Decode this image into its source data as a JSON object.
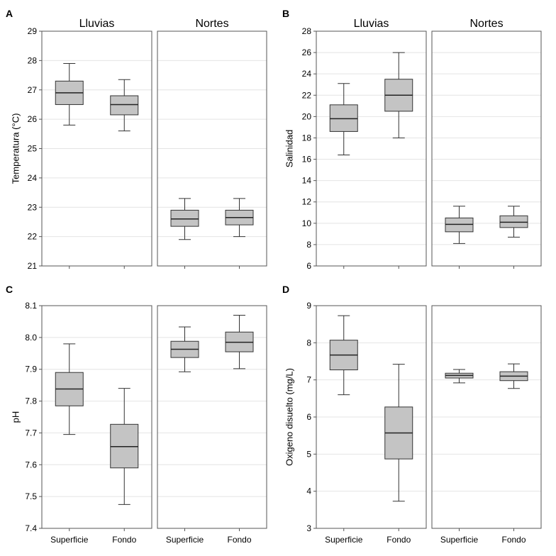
{
  "chart_data": [
    {
      "type": "boxplot",
      "panel_label": "A",
      "ylabel": "Temperatura (°C)",
      "ylim": [
        21,
        29
      ],
      "yticks": [
        21,
        22,
        23,
        24,
        25,
        26,
        27,
        28,
        29
      ],
      "ytick_labels": [
        "21",
        "22",
        "23",
        "24",
        "25",
        "26",
        "27",
        "28",
        "29"
      ],
      "groups": [
        {
          "name": "Lluvias",
          "boxes": [
            {
              "category": "Superficie",
              "min": 25.8,
              "q1": 26.5,
              "median": 26.9,
              "q3": 27.3,
              "max": 27.9
            },
            {
              "category": "Fondo",
              "min": 25.6,
              "q1": 26.15,
              "median": 26.5,
              "q3": 26.8,
              "max": 27.35
            }
          ]
        },
        {
          "name": "Nortes",
          "boxes": [
            {
              "category": "Superficie",
              "min": 21.9,
              "q1": 22.35,
              "median": 22.6,
              "q3": 22.9,
              "max": 23.3
            },
            {
              "category": "Fondo",
              "min": 22.0,
              "q1": 22.4,
              "median": 22.65,
              "q3": 22.9,
              "max": 23.3
            }
          ]
        }
      ],
      "show_group_titles": true,
      "show_x_labels": false
    },
    {
      "type": "boxplot",
      "panel_label": "B",
      "ylabel": "Salinidad",
      "ylim": [
        6,
        28
      ],
      "yticks": [
        6,
        8,
        10,
        12,
        14,
        16,
        18,
        20,
        22,
        24,
        26,
        28
      ],
      "ytick_labels": [
        "6",
        "8",
        "10",
        "12",
        "14",
        "16",
        "18",
        "20",
        "22",
        "24",
        "26",
        "28"
      ],
      "groups": [
        {
          "name": "Lluvias",
          "boxes": [
            {
              "category": "Superficie",
              "min": 16.4,
              "q1": 18.6,
              "median": 19.8,
              "q3": 21.1,
              "max": 23.1
            },
            {
              "category": "Fondo",
              "min": 18.0,
              "q1": 20.5,
              "median": 22.0,
              "q3": 23.5,
              "max": 26.0
            }
          ]
        },
        {
          "name": "Nortes",
          "boxes": [
            {
              "category": "Superficie",
              "min": 8.1,
              "q1": 9.2,
              "median": 9.9,
              "q3": 10.5,
              "max": 11.6
            },
            {
              "category": "Fondo",
              "min": 8.7,
              "q1": 9.6,
              "median": 10.1,
              "q3": 10.7,
              "max": 11.6
            }
          ]
        }
      ],
      "show_group_titles": true,
      "show_x_labels": false
    },
    {
      "type": "boxplot",
      "panel_label": "C",
      "ylabel": "pH",
      "ylim": [
        7.4,
        8.1
      ],
      "yticks": [
        7.4,
        7.5,
        7.6,
        7.7,
        7.8,
        7.9,
        8.0,
        8.1
      ],
      "ytick_labels": [
        "7.4",
        "7.5",
        "7.6",
        "7.7",
        "7.8",
        "7.9",
        "8.0",
        "8.1"
      ],
      "groups": [
        {
          "name": "Lluvias",
          "boxes": [
            {
              "category": "Superficie",
              "min": 7.695,
              "q1": 7.785,
              "median": 7.838,
              "q3": 7.89,
              "max": 7.98
            },
            {
              "category": "Fondo",
              "min": 7.475,
              "q1": 7.59,
              "median": 7.657,
              "q3": 7.727,
              "max": 7.84
            }
          ]
        },
        {
          "name": "Nortes",
          "boxes": [
            {
              "category": "Superficie",
              "min": 7.892,
              "q1": 7.937,
              "median": 7.963,
              "q3": 7.988,
              "max": 8.033
            },
            {
              "category": "Fondo",
              "min": 7.902,
              "q1": 7.955,
              "median": 7.985,
              "q3": 8.017,
              "max": 8.07
            }
          ]
        }
      ],
      "show_group_titles": false,
      "show_x_labels": true
    },
    {
      "type": "boxplot",
      "panel_label": "D",
      "ylabel": "Oxigeno disuelto (mg/L)",
      "ylim": [
        3,
        9
      ],
      "yticks": [
        3,
        4,
        5,
        6,
        7,
        8,
        9
      ],
      "ytick_labels": [
        "3",
        "4",
        "5",
        "6",
        "7",
        "8",
        "9"
      ],
      "groups": [
        {
          "name": "Lluvias",
          "boxes": [
            {
              "category": "Superficie",
              "min": 6.6,
              "q1": 7.27,
              "median": 7.67,
              "q3": 8.07,
              "max": 8.73
            },
            {
              "category": "Fondo",
              "min": 3.73,
              "q1": 4.87,
              "median": 5.57,
              "q3": 6.27,
              "max": 7.42
            }
          ]
        },
        {
          "name": "Nortes",
          "boxes": [
            {
              "category": "Superficie",
              "min": 6.92,
              "q1": 7.05,
              "median": 7.12,
              "q3": 7.18,
              "max": 7.28
            },
            {
              "category": "Fondo",
              "min": 6.77,
              "q1": 6.98,
              "median": 7.1,
              "q3": 7.22,
              "max": 7.43
            }
          ]
        }
      ],
      "show_group_titles": false,
      "show_x_labels": true
    }
  ],
  "colors": {
    "box_fill": "#c4c4c4",
    "box_stroke": "#333333",
    "frame": "#555555",
    "gridline": "#e4e4e4",
    "median": "#222222"
  }
}
